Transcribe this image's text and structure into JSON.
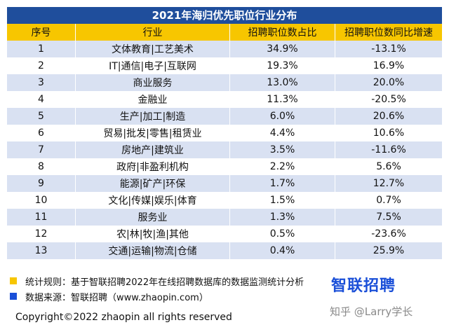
{
  "chart_data": {
    "type": "table",
    "title": "2021年海归优先职位行业分布",
    "columns": [
      "序号",
      "行业",
      "招聘职位数占比",
      "招聘职位数同比增速"
    ],
    "rows": [
      [
        "1",
        "文体教育|工艺美术",
        "34.9%",
        "-13.1%"
      ],
      [
        "2",
        "IT|通信|电子|互联网",
        "19.3%",
        "16.9%"
      ],
      [
        "3",
        "商业服务",
        "13.0%",
        "20.0%"
      ],
      [
        "4",
        "金融业",
        "11.3%",
        "-20.5%"
      ],
      [
        "5",
        "生产|加工|制造",
        "6.0%",
        "20.6%"
      ],
      [
        "6",
        "贸易|批发|零售|租赁业",
        "4.4%",
        "10.6%"
      ],
      [
        "7",
        "房地产|建筑业",
        "3.5%",
        "-11.6%"
      ],
      [
        "8",
        "政府|非盈利机构",
        "2.2%",
        "5.6%"
      ],
      [
        "9",
        "能源|矿产|环保",
        "1.7%",
        "12.7%"
      ],
      [
        "10",
        "文化|传媒|娱乐|体育",
        "1.5%",
        "0.7%"
      ],
      [
        "11",
        "服务业",
        "1.3%",
        "7.5%"
      ],
      [
        "12",
        "农|林|牧|渔|其他",
        "0.5%",
        "-23.6%"
      ],
      [
        "13",
        "交通|运输|物流|仓储",
        "0.4%",
        "25.9%"
      ]
    ]
  },
  "notes": {
    "rule": "统计规则：基于智联招聘2022年在线招聘数据库的数据监测统计分析",
    "source": "数据来源：智联招聘（www.zhaopin.com）",
    "rule_color": "#f7c600",
    "source_color": "#1a4fd8"
  },
  "logo_text": "智联招聘",
  "watermark": "知乎 @Larry学长",
  "copyright": "Copyright©2022 zhaopin all rights reserved",
  "colors": {
    "title_bg": "#1f4e9c",
    "header_bg": "#f7c600",
    "stripe": "#d9e1f2"
  }
}
